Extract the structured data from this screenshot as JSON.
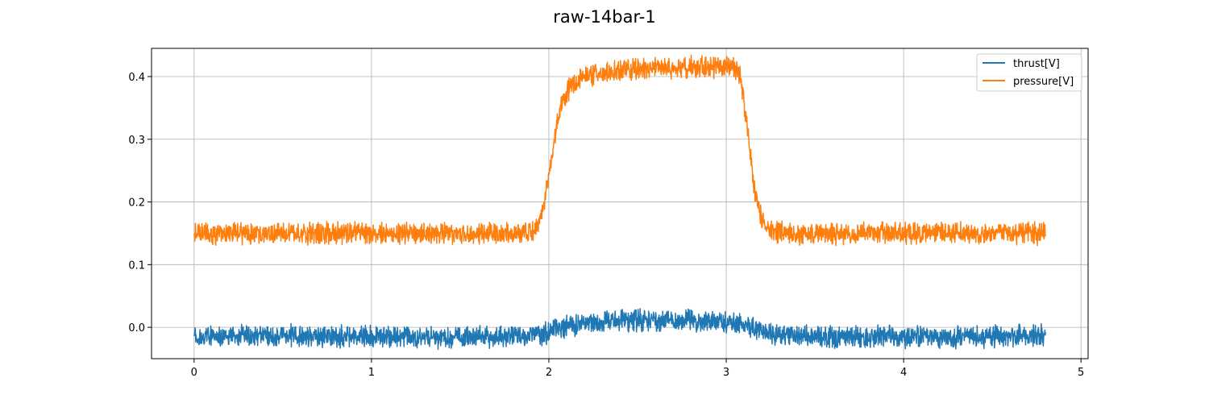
{
  "chart_data": {
    "type": "line",
    "title": "raw-14bar-1",
    "xlabel": "",
    "ylabel": "",
    "xlim": [
      -0.24,
      5.04
    ],
    "ylim": [
      -0.05,
      0.445
    ],
    "x_ticks": [
      0,
      1,
      2,
      3,
      4,
      5
    ],
    "y_ticks": [
      0.0,
      0.1,
      0.2,
      0.3,
      0.4
    ],
    "x_tick_labels": [
      "0",
      "1",
      "2",
      "3",
      "4",
      "5"
    ],
    "y_tick_labels": [
      "0.0",
      "0.1",
      "0.2",
      "0.3",
      "0.4"
    ],
    "grid": true,
    "legend_position": "top-right",
    "series": [
      {
        "name": "thrust[V]",
        "color": "#1f77b4",
        "noise_band": 0.025,
        "x": [
          0.0,
          0.5,
          1.0,
          1.5,
          1.8,
          1.95,
          2.05,
          2.2,
          2.5,
          2.8,
          3.0,
          3.1,
          3.2,
          3.3,
          3.5,
          4.0,
          4.5,
          4.8
        ],
        "y": [
          -0.015,
          -0.013,
          -0.015,
          -0.016,
          -0.015,
          -0.012,
          -0.002,
          0.008,
          0.012,
          0.011,
          0.008,
          0.005,
          -0.007,
          -0.012,
          -0.015,
          -0.015,
          -0.015,
          -0.013
        ]
      },
      {
        "name": "pressure[V]",
        "color": "#ff7f0e",
        "noise_band": 0.025,
        "x": [
          0.0,
          1.0,
          1.85,
          1.92,
          1.96,
          2.0,
          2.03,
          2.07,
          2.12,
          2.2,
          2.4,
          2.8,
          3.05,
          3.08,
          3.1,
          3.13,
          3.16,
          3.2,
          3.25,
          3.3,
          4.0,
          4.8
        ],
        "y": [
          0.15,
          0.15,
          0.15,
          0.155,
          0.18,
          0.24,
          0.3,
          0.35,
          0.385,
          0.4,
          0.41,
          0.415,
          0.415,
          0.4,
          0.36,
          0.29,
          0.22,
          0.17,
          0.152,
          0.15,
          0.15,
          0.15
        ]
      }
    ]
  }
}
